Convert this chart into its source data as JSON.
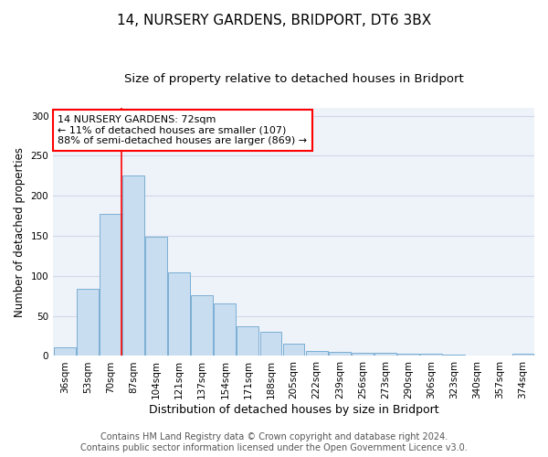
{
  "title": "14, NURSERY GARDENS, BRIDPORT, DT6 3BX",
  "subtitle": "Size of property relative to detached houses in Bridport",
  "xlabel": "Distribution of detached houses by size in Bridport",
  "ylabel": "Number of detached properties",
  "categories": [
    "36sqm",
    "53sqm",
    "70sqm",
    "87sqm",
    "104sqm",
    "121sqm",
    "137sqm",
    "154sqm",
    "171sqm",
    "188sqm",
    "205sqm",
    "222sqm",
    "239sqm",
    "256sqm",
    "273sqm",
    "290sqm",
    "306sqm",
    "323sqm",
    "340sqm",
    "357sqm",
    "374sqm"
  ],
  "values": [
    11,
    84,
    177,
    225,
    149,
    104,
    76,
    66,
    37,
    30,
    15,
    6,
    5,
    4,
    4,
    3,
    3,
    2,
    1,
    1,
    3
  ],
  "bar_color": "#c9ddf0",
  "bar_edge_color": "#7bafd4",
  "red_line_index": 2,
  "annotation_text": "14 NURSERY GARDENS: 72sqm\n← 11% of detached houses are smaller (107)\n88% of semi-detached houses are larger (869) →",
  "annotation_box_color": "white",
  "annotation_box_edge_color": "red",
  "footer_line1": "Contains HM Land Registry data © Crown copyright and database right 2024.",
  "footer_line2": "Contains public sector information licensed under the Open Government Licence v3.0.",
  "ylim": [
    0,
    310
  ],
  "background_color": "#eef2f9",
  "grid_color": "#d0d8e8",
  "title_fontsize": 11,
  "subtitle_fontsize": 9.5,
  "ylabel_fontsize": 8.5,
  "xlabel_fontsize": 9,
  "tick_fontsize": 7.5,
  "annotation_fontsize": 8,
  "footer_fontsize": 7
}
